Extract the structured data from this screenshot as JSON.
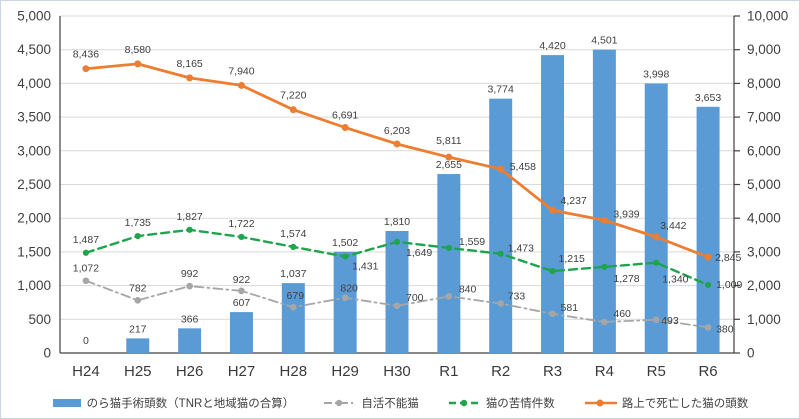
{
  "chart_data": {
    "type": "bar+line combo",
    "categories": [
      "H24",
      "H25",
      "H26",
      "H27",
      "H28",
      "H29",
      "H30",
      "R1",
      "R2",
      "R3",
      "R4",
      "R5",
      "R6"
    ],
    "series": [
      {
        "name": "のら猫手術頭数（TNRと地域猫の合算）",
        "type": "bar",
        "axis": "left",
        "color": "#5B9BD5",
        "values": [
          0,
          217,
          366,
          607,
          1037,
          1502,
          1810,
          2655,
          3774,
          4420,
          4501,
          3998,
          3653
        ]
      },
      {
        "name": "自活不能猫",
        "type": "line",
        "line_style": "dashdot",
        "axis": "left",
        "color": "#A6A6A6",
        "values": [
          1072,
          782,
          992,
          922,
          679,
          820,
          700,
          840,
          733,
          581,
          460,
          493,
          380
        ]
      },
      {
        "name": "猫の苦情件数",
        "type": "line",
        "line_style": "dashed",
        "axis": "left",
        "color": "#1EA44C",
        "values": [
          1487,
          1735,
          1827,
          1722,
          1574,
          1431,
          1649,
          1559,
          1473,
          1215,
          1278,
          1340,
          1009
        ]
      },
      {
        "name": "路上で死亡した猫の頭数",
        "type": "line",
        "line_style": "solid",
        "axis": "right",
        "color": "#ED7D31",
        "values": [
          8436,
          8580,
          8165,
          7940,
          7220,
          6691,
          6203,
          5811,
          5458,
          4237,
          3939,
          3442,
          2845
        ]
      }
    ],
    "left_axis": {
      "min": 0,
      "max": 5000,
      "step": 500,
      "ticks": [
        "0",
        "500",
        "1,000",
        "1,500",
        "2,000",
        "2,500",
        "3,000",
        "3,500",
        "4,000",
        "4,500",
        "5,000"
      ]
    },
    "right_axis": {
      "min": 0,
      "max": 10000,
      "step": 1000,
      "ticks": [
        "0",
        "1,000",
        "2,000",
        "3,000",
        "4,000",
        "5,000",
        "6,000",
        "7,000",
        "8,000",
        "9,000",
        "10,000"
      ]
    },
    "grid": "horizontal",
    "legend_position": "bottom",
    "gridline_color": "#D9D9D9",
    "axis_line_color": "#404040"
  }
}
